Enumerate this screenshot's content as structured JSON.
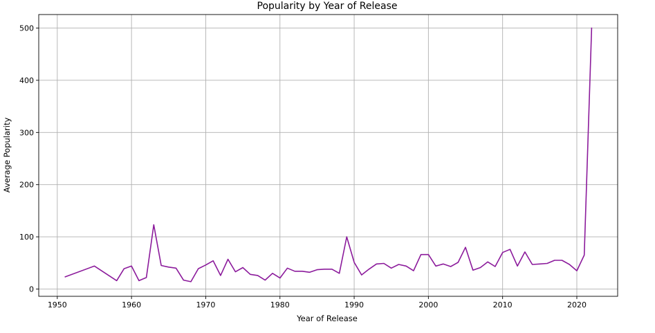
{
  "chart_data": {
    "type": "line",
    "title": "Popularity by Year of Release",
    "xlabel": "Year of Release",
    "ylabel": "Average Popularity",
    "xlim": [
      1947.5,
      2025.5
    ],
    "ylim": [
      -14,
      526
    ],
    "xticks": [
      1950,
      1960,
      1970,
      1980,
      1990,
      2000,
      2010,
      2020
    ],
    "yticks": [
      0,
      100,
      200,
      300,
      400,
      500
    ],
    "grid": true,
    "line_color": "#8B1A9B",
    "series": [
      {
        "x": [
          1951,
          1955,
          1958,
          1959,
          1960,
          1961,
          1962,
          1963,
          1964,
          1965,
          1966,
          1967,
          1968,
          1969,
          1970,
          1971,
          1972,
          1973,
          1974,
          1975,
          1976,
          1977,
          1978,
          1979,
          1980,
          1981,
          1982,
          1983,
          1984,
          1985,
          1986,
          1987,
          1988,
          1989,
          1990,
          1991,
          1992,
          1993,
          1994,
          1995,
          1996,
          1997,
          1998,
          1999,
          2000,
          2001,
          2002,
          2003,
          2004,
          2005,
          2006,
          2007,
          2008,
          2009,
          2010,
          2011,
          2012,
          2013,
          2014,
          2015,
          2016,
          2017,
          2018,
          2019,
          2020,
          2021,
          2022
        ],
        "values": [
          23,
          44,
          16,
          39,
          44,
          16,
          22,
          123,
          45,
          42,
          40,
          17,
          14,
          39,
          46,
          54,
          26,
          57,
          33,
          41,
          28,
          26,
          17,
          30,
          21,
          40,
          34,
          34,
          32,
          37,
          38,
          38,
          30,
          100,
          51,
          27,
          38,
          48,
          49,
          40,
          47,
          44,
          35,
          66,
          66,
          44,
          48,
          43,
          51,
          80,
          36,
          41,
          52,
          43,
          70,
          76,
          44,
          71,
          47,
          48,
          49,
          55,
          55,
          47,
          35,
          65,
          501
        ]
      }
    ]
  }
}
